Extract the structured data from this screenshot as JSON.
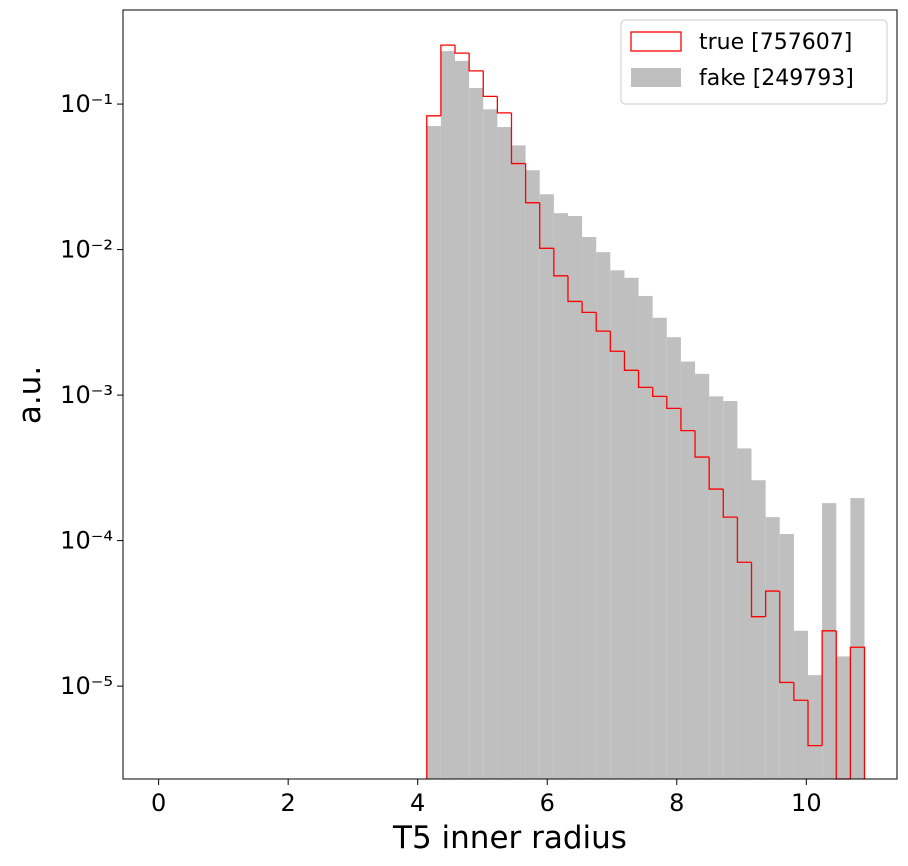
{
  "chart_data": {
    "type": "histogram",
    "xlabel": "T5 inner radius",
    "ylabel": "a.u.",
    "bins": [
      4.14,
      4.358,
      4.576,
      4.794,
      5.012,
      5.23,
      5.448,
      5.666,
      5.884,
      6.102,
      6.32,
      6.538,
      6.756,
      6.974,
      7.192,
      7.41,
      7.628,
      7.846,
      8.064,
      8.282,
      8.5,
      8.718,
      8.936,
      9.154,
      9.372,
      9.59,
      9.808,
      10.026,
      10.244,
      10.462,
      10.68,
      10.898
    ],
    "series": [
      {
        "name": "true [757607]",
        "color": "#ff0000",
        "histtype": "step",
        "values": [
          0.083,
          0.254,
          0.224,
          0.169,
          0.113,
          0.087,
          0.039,
          0.021,
          0.0102,
          0.0066,
          0.0044,
          0.0037,
          0.00275,
          0.002,
          0.00148,
          0.00113,
          0.00098,
          0.00081,
          0.00057,
          0.000375,
          0.000226,
          0.000145,
          7.1e-05,
          3e-05,
          4.5e-05,
          1.06e-05,
          8e-06,
          3.9e-06,
          2.4e-05,
          0,
          1.85e-05
        ]
      },
      {
        "name": "fake [249793]",
        "color": "#bfbfbf",
        "histtype": "bar",
        "values": [
          0.0706,
          0.231,
          0.198,
          0.129,
          0.092,
          0.0695,
          0.052,
          0.0351,
          0.024,
          0.0178,
          0.017,
          0.0122,
          0.0096,
          0.0072,
          0.0064,
          0.0048,
          0.0034,
          0.0025,
          0.0017,
          0.0014,
          0.00098,
          0.00091,
          0.00043,
          0.00026,
          0.000145,
          0.000111,
          2.4e-05,
          1.19e-05,
          0.000181,
          1.6e-05,
          0.000196
        ]
      }
    ],
    "xlim": [
      -0.55,
      11.4
    ],
    "xticks": [
      0,
      2,
      4,
      6,
      8,
      10
    ],
    "ylim": [
      2.3e-06,
      0.443
    ],
    "ylog": true,
    "yticks": [
      {
        "value": 1e-05,
        "label": "10⁻⁵"
      },
      {
        "value": 0.0001,
        "label": "10⁻⁴"
      },
      {
        "value": 0.001,
        "label": "10⁻³"
      },
      {
        "value": 0.01,
        "label": "10⁻²"
      },
      {
        "value": 0.1,
        "label": "10⁻¹"
      }
    ],
    "legend": "upper right"
  }
}
